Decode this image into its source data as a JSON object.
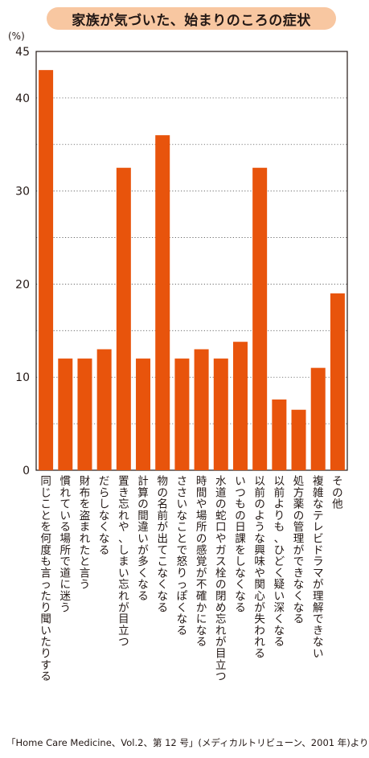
{
  "title": "家族が気づいた、始まりのころの症状",
  "source": "「Home Care Medicine、Vol.2、第 12 号」(メディカルトリビューン、2001 年)より",
  "colors": {
    "bar": "#e8540c",
    "title_bg": "#f8c7a1",
    "text": "#231815"
  },
  "chart_data": {
    "type": "bar",
    "title": "家族が気づいた、始まりのころの症状",
    "ylabel": "(%)",
    "xlabel": "",
    "ylim": [
      0,
      45
    ],
    "yticks": [
      0,
      10,
      20,
      30,
      40,
      45
    ],
    "grid": true,
    "categories": [
      "同じことを何度も言ったり聞いたりする",
      "慣れている場所で道に迷う",
      "財布を盗まれたと言う",
      "だらしなくなる",
      "置き忘れや、しまい忘れが目立つ",
      "計算の間違いが多くなる",
      "物の名前が出てこなくなる",
      "ささいなことで怒りっぽくなる",
      "時間や場所の感覚が不確かになる",
      "水道の蛇口やガス栓の閉め忘れが目立つ",
      "いつもの日課をしなくなる",
      "以前のような興味や関心が失われる",
      "以前よりも、ひどく疑い深くなる",
      "処方薬の管理ができなくなる",
      "複雑なテレビドラマが理解できない",
      "その他"
    ],
    "values": [
      43,
      12,
      12,
      13,
      32.5,
      12,
      36,
      12,
      13,
      12,
      13.8,
      32.5,
      7.6,
      6.5,
      11,
      19
    ]
  }
}
